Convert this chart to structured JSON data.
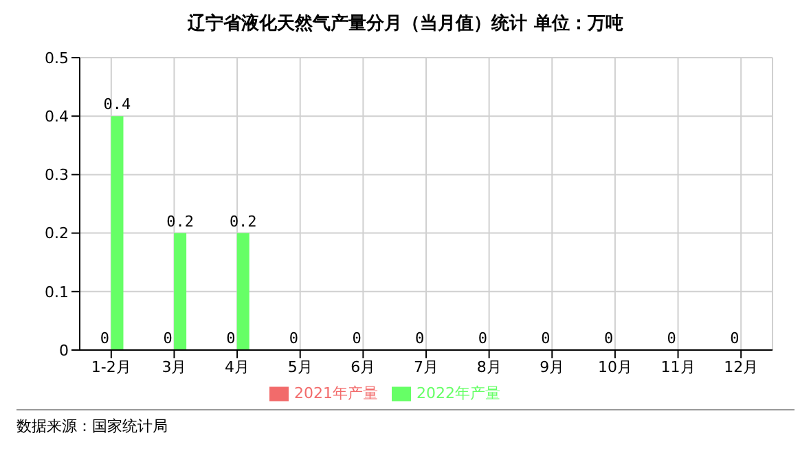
{
  "chart_data": {
    "type": "bar",
    "title": "辽宁省液化天然气产量分月（当月值）统计  单位：万吨",
    "categories": [
      "1-2月",
      "3月",
      "4月",
      "5月",
      "6月",
      "7月",
      "8月",
      "9月",
      "10月",
      "11月",
      "12月"
    ],
    "series": [
      {
        "name": "2021年产量",
        "color": "#f26b6b",
        "values": [
          0,
          0,
          0,
          0,
          0,
          0,
          0,
          0,
          0,
          0,
          0
        ]
      },
      {
        "name": "2022年产量",
        "color": "#66ff66",
        "values": [
          0.4,
          0.2,
          0.2,
          null,
          null,
          null,
          null,
          null,
          null,
          null,
          null
        ]
      }
    ],
    "ylim": [
      0,
      0.5
    ],
    "yticks": [
      0,
      0.1,
      0.2,
      0.3,
      0.4,
      0.5
    ],
    "grid": true,
    "legend": "bottom",
    "data_labels": true,
    "annotations": [
      "数据来源：国家统计局"
    ]
  }
}
